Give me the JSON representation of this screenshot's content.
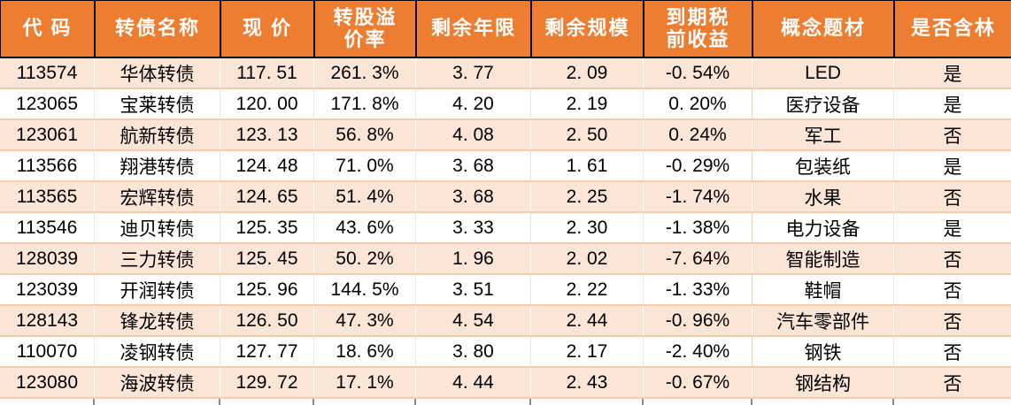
{
  "colors": {
    "header_bg": "#ED7D31",
    "header_text": "#FFFFFF",
    "header_border": "#000000",
    "row_bg": "#FFFFFF",
    "row_alt_bg": "#FBE5D6",
    "row_divider": "#F8CBAD",
    "text": "#000000"
  },
  "header": {
    "labels": [
      "代 码",
      "转债名称",
      "现 价",
      "转股溢\n价率",
      "剩余年限",
      "剩余规模",
      "到期税\n前收益",
      "概念题材",
      "是否含林"
    ]
  },
  "chart_data": {
    "type": "table",
    "title": "",
    "columns": [
      "代码",
      "转债名称",
      "现价",
      "转股溢价率",
      "剩余年限",
      "剩余规模",
      "到期税前收益",
      "概念题材",
      "是否含林"
    ],
    "column_keys": [
      "code",
      "name",
      "price",
      "premium-rate",
      "remaining-years",
      "remaining-size",
      "pretax-yield",
      "concept",
      "contains-flag"
    ],
    "rows": [
      [
        "113574",
        "华体转债",
        "117. 51",
        "261. 3%",
        "3. 77",
        "2. 09",
        "-0. 54%",
        "LED",
        "是"
      ],
      [
        "123065",
        "宝莱转债",
        "120. 00",
        "171. 8%",
        "4. 20",
        "2. 19",
        "0. 20%",
        "医疗设备",
        "是"
      ],
      [
        "123061",
        "航新转债",
        "123. 13",
        "56. 8%",
        "4. 08",
        "2. 50",
        "0. 24%",
        "军工",
        "否"
      ],
      [
        "113566",
        "翔港转债",
        "124. 48",
        "71. 0%",
        "3. 68",
        "1. 61",
        "-0. 29%",
        "包装纸",
        "是"
      ],
      [
        "113565",
        "宏辉转债",
        "124. 65",
        "51. 4%",
        "3. 68",
        "2. 25",
        "-1. 74%",
        "水果",
        "否"
      ],
      [
        "113546",
        "迪贝转债",
        "125. 35",
        "43. 6%",
        "3. 33",
        "2. 30",
        "-1. 38%",
        "电力设备",
        "是"
      ],
      [
        "128039",
        "三力转债",
        "125. 45",
        "50. 2%",
        "1. 96",
        "2. 02",
        "-7. 64%",
        "智能制造",
        "否"
      ],
      [
        "123039",
        "开润转债",
        "125. 96",
        "144. 5%",
        "3. 51",
        "2. 22",
        "-1. 33%",
        "鞋帽",
        "否"
      ],
      [
        "128143",
        "锋龙转债",
        "126. 50",
        "47. 3%",
        "4. 54",
        "2. 44",
        "-0. 96%",
        "汽车零部件",
        "否"
      ],
      [
        "110070",
        "凌钢转债",
        "127. 77",
        "18. 6%",
        "3. 80",
        "2. 17",
        "-2. 40%",
        "钢铁",
        "否"
      ],
      [
        "123080",
        "海波转债",
        "129. 72",
        "17. 1%",
        "4. 44",
        "2. 43",
        "-0. 67%",
        "钢结构",
        "否"
      ]
    ]
  }
}
